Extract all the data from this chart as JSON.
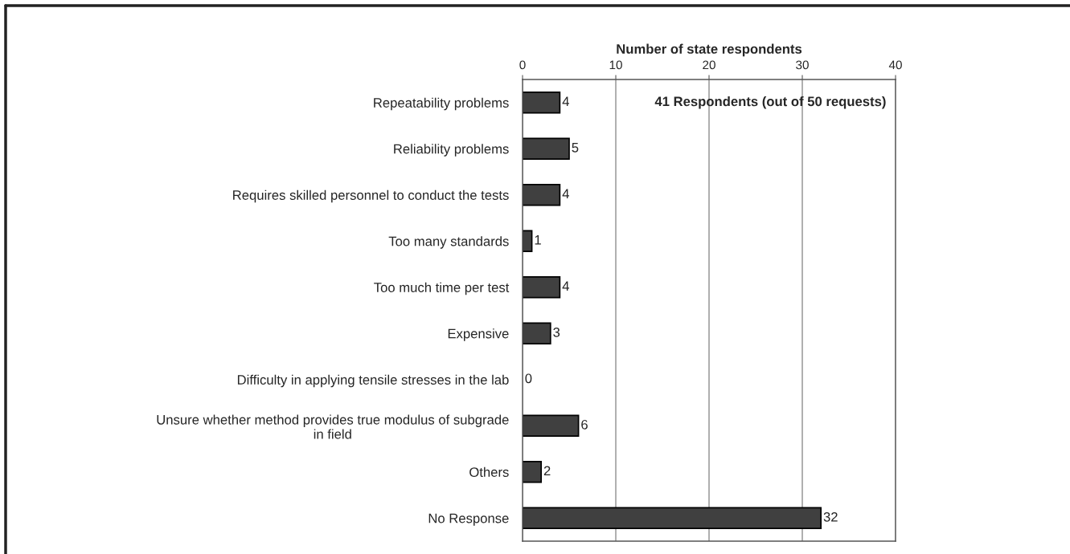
{
  "chart_data": {
    "type": "bar",
    "orientation": "horizontal",
    "xlabel": "Number of state respondents",
    "categories": [
      "Repeatability problems",
      "Reliability problems",
      "Requires skilled personnel to conduct the tests",
      "Too many standards",
      "Too much time per test",
      "Expensive",
      "Difficulty in applying tensile stresses in the lab",
      "Unsure whether method provides true modulus of subgrade\nin field",
      "Others",
      "No Response"
    ],
    "values": [
      4,
      5,
      4,
      1,
      4,
      3,
      0,
      6,
      2,
      32
    ],
    "color": "#404040",
    "xlim": [
      0,
      40
    ],
    "xticks": [
      0,
      10,
      20,
      30,
      40
    ],
    "grid": "x",
    "data_labels": true,
    "annotations": [
      "41 Respondents (out of 50 requests)"
    ]
  }
}
